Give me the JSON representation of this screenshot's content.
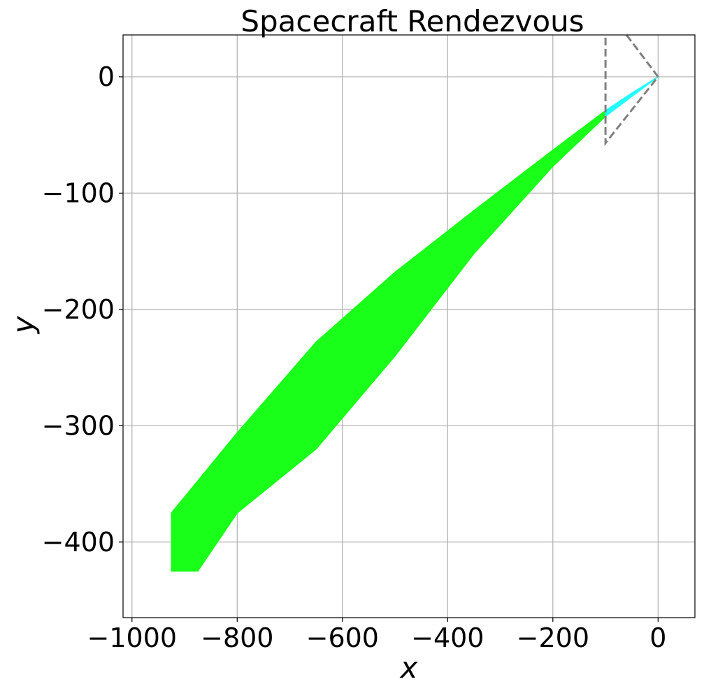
{
  "chart_data": {
    "type": "area",
    "title": "Spacecraft Rendezvous",
    "xlabel": "x",
    "ylabel": "y",
    "xlim": [
      -1017,
      70
    ],
    "ylim": [
      -465,
      36
    ],
    "grid": true,
    "xticks": [
      -1000,
      -800,
      -600,
      -400,
      -200,
      0
    ],
    "yticks": [
      0,
      -100,
      -200,
      -300,
      -400
    ],
    "xtick_labels": [
      "−1000",
      "−800",
      "−600",
      "−400",
      "−200",
      "0"
    ],
    "ytick_labels": [
      "0",
      "−100",
      "−200",
      "−300",
      "−400"
    ],
    "colors": {
      "approach": "#19ff19",
      "final": "#22ffff",
      "boundary": "#808080",
      "grid": "#b0b0b0"
    },
    "series": [
      {
        "region": "approach",
        "upper": [
          [
            -925,
            -375
          ],
          [
            -800,
            -306
          ],
          [
            -650,
            -228
          ],
          [
            -500,
            -168
          ],
          [
            -350,
            -115
          ],
          [
            -200,
            -63
          ],
          [
            -100,
            -29
          ]
        ],
        "lower": [
          [
            -100,
            -34
          ],
          [
            -200,
            -77
          ],
          [
            -350,
            -152
          ],
          [
            -500,
            -240
          ],
          [
            -650,
            -320
          ],
          [
            -800,
            -375
          ],
          [
            -875,
            -425
          ],
          [
            -925,
            -425
          ]
        ]
      },
      {
        "region": "final",
        "upper": [
          [
            -100,
            -29
          ],
          [
            -50,
            -14
          ],
          [
            0,
            0
          ]
        ],
        "lower": [
          [
            0,
            0
          ],
          [
            -50,
            -17
          ],
          [
            -100,
            -34
          ]
        ]
      }
    ],
    "boundary": [
      [
        -60,
        36
      ],
      [
        0,
        0
      ],
      [
        -100,
        -57
      ],
      [
        -100,
        36
      ]
    ]
  }
}
